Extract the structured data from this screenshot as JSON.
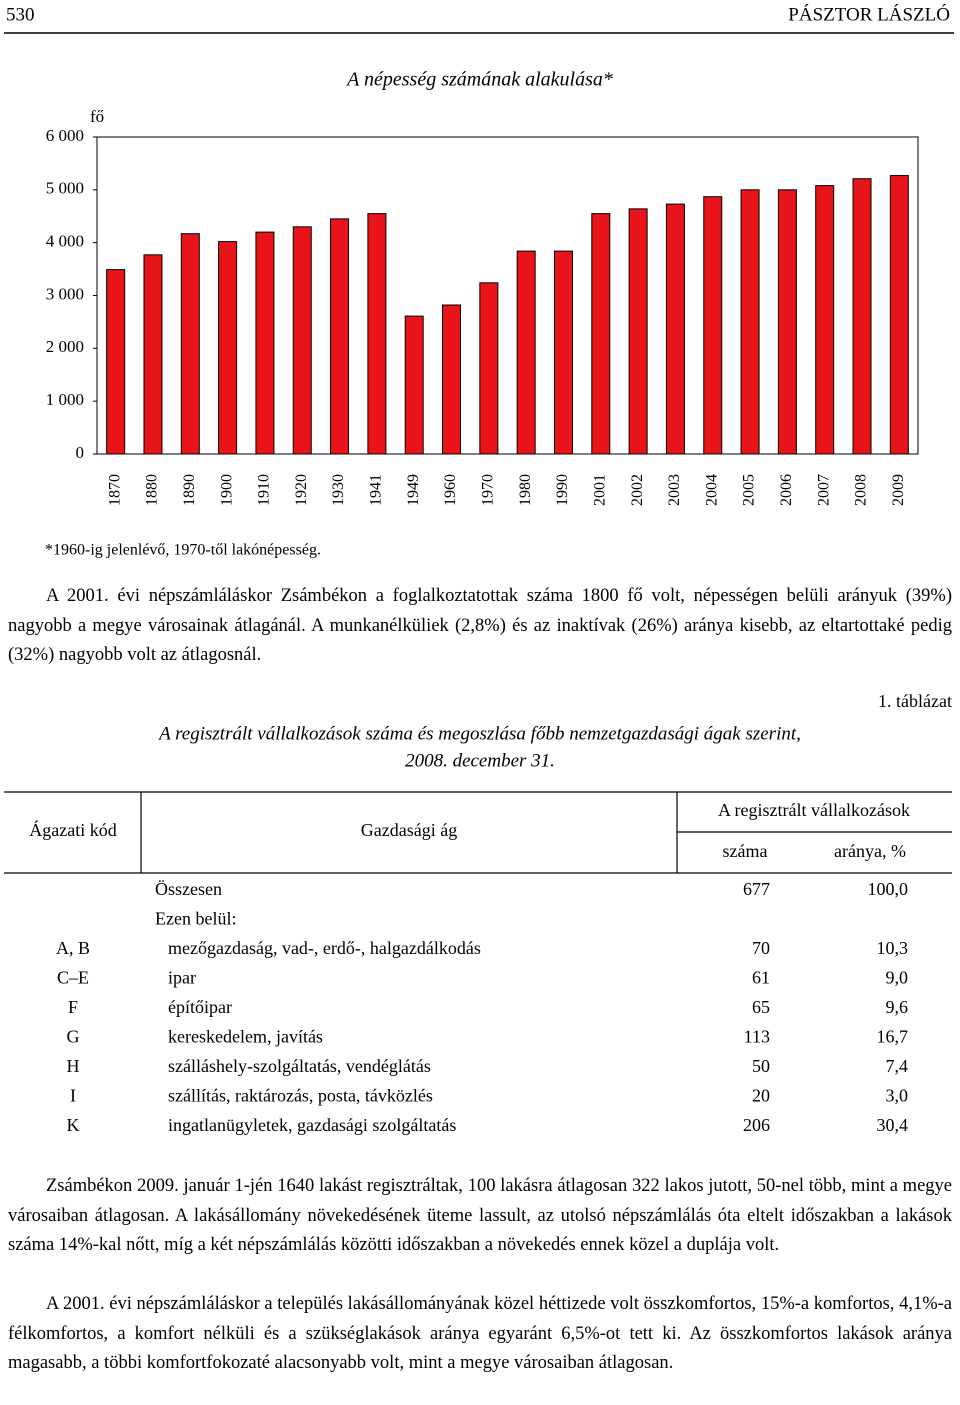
{
  "header": {
    "page_number": "530",
    "author": "PÁSZTOR LÁSZLÓ"
  },
  "chart_data": {
    "type": "bar",
    "title": "A népesség számának alakulása*",
    "y_unit": "fő",
    "categories": [
      "1870",
      "1880",
      "1890",
      "1900",
      "1910",
      "1920",
      "1930",
      "1941",
      "1949",
      "1960",
      "1970",
      "1980",
      "1990",
      "2001",
      "2002",
      "2003",
      "2004",
      "2005",
      "2006",
      "2007",
      "2008",
      "2009"
    ],
    "values": [
      3490,
      3770,
      4170,
      4020,
      4200,
      4300,
      4450,
      4550,
      2610,
      2820,
      3240,
      3840,
      3840,
      4550,
      4640,
      4730,
      4870,
      5000,
      5000,
      5080,
      5210,
      5270
    ],
    "color": "#e8141a",
    "ylim": [
      0,
      6000
    ],
    "yticks": [
      0,
      {
        "value": 1000,
        "label": "1 000"
      },
      {
        "value": 2000,
        "label": "2 000"
      },
      {
        "value": 3000,
        "label": "3 000"
      },
      {
        "value": 4000,
        "label": "4 000"
      },
      {
        "value": 5000,
        "label": "5 000"
      },
      {
        "value": 6000,
        "label": "6 000"
      }
    ],
    "grid": false,
    "footnote": "*1960-ig jelenlévő, 1970-től lakónépesség."
  },
  "paragraphs": [
    "A 2001. évi népszámláláskor Zsámbékon a foglalkoztatottak száma 1800 fő volt, népességen belüli arányuk (39%) nagyobb a megye városainak átlagánál. A munkanélküliek (2,8%) és az inaktívak (26%) aránya kisebb, az eltartottaké pedig (32%) nagyobb volt az átlagosnál.",
    "Zsámbékon 2009. január 1-jén 1640 lakást regisztráltak, 100 lakásra átlagosan 322 lakos jutott, 50-nel több, mint a megye városaiban átlagosan. A lakásállomány növekedésének üteme lassult, az utolsó népszámlálás óta eltelt időszakban a lakások száma 14%-kal nőtt, míg a két népszámlálás közötti időszakban a növekedés ennek közel a duplája volt.",
    "A 2001. évi népszámláláskor a település lakásállományának közel héttizede volt összkomfortos, 15%-a komfortos, 4,1%-a félkomfortos, a komfort nélküli és a szükséglakások aránya egyaránt 6,5%-ot tett ki. Az összkomfortos lakások aránya magasabb, a többi komfortfokozaté alacsonyabb volt, mint a megye városaiban átlagosan."
  ],
  "table": {
    "number": "1. táblázat",
    "title_lines": [
      "A regisztrált vállalkozások száma és megoszlása főbb nemzetgazdasági ágak szerint,",
      "2008. december 31."
    ],
    "headers": {
      "code": "Ágazati kód",
      "branch": "Gazdasági ág",
      "group": "A regisztrált vállalkozások",
      "count": "száma",
      "share": "aránya, %"
    },
    "rows": [
      {
        "branch": "Összesen",
        "count": "677",
        "share": "100,0"
      },
      {
        "branch": "Ezen belül:"
      },
      {
        "code": "A, B",
        "branch": "mezőgazdaság, vad-, erdő-, halgazdálkodás",
        "count": "70",
        "share": "10,3"
      },
      {
        "code": "C–E",
        "branch": "ipar",
        "count": "61",
        "share": "9,0"
      },
      {
        "code": "F",
        "branch": "építőipar",
        "count": "65",
        "share": "9,6"
      },
      {
        "code": "G",
        "branch": "kereskedelem, javítás",
        "count": "113",
        "share": "16,7"
      },
      {
        "code": "H",
        "branch": "szálláshely-szolgáltatás, vendéglátás",
        "count": "50",
        "share": "7,4"
      },
      {
        "code": "I",
        "branch": "szállítás, raktározás, posta, távközlés",
        "count": "20",
        "share": "3,0"
      },
      {
        "code": "K",
        "branch": "ingatlanügyletek, gazdasági szolgáltatás",
        "count": "206",
        "share": "30,4"
      }
    ]
  }
}
